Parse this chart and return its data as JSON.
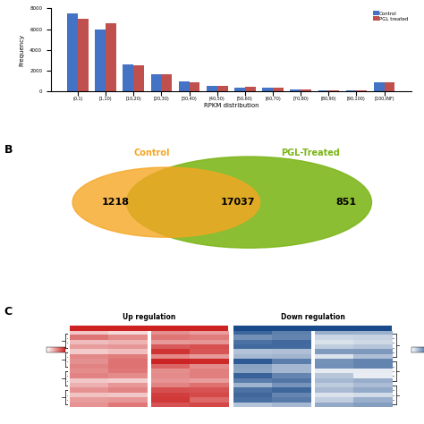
{
  "bar_categories": [
    "(0,1)",
    "[1,10)",
    "[10,20)",
    "[20,30)",
    "[30,40)",
    "[40,50)",
    "[50,60)",
    "[60,70)",
    "[70,80)",
    "[80,90)",
    "[90,100)",
    "[100,INF)"
  ],
  "control_values": [
    7500,
    6000,
    2600,
    1600,
    950,
    550,
    380,
    320,
    180,
    100,
    70,
    850
  ],
  "pgl_values": [
    7000,
    6600,
    2500,
    1600,
    850,
    500,
    400,
    340,
    190,
    110,
    60,
    900
  ],
  "bar_color_control": "#4472C4",
  "bar_color_pgl": "#C0504D",
  "ylabel": "Frequency",
  "xlabel": "RPKM distribution",
  "legend_control": "Control",
  "legend_pgl": "PGL treated",
  "ylim": [
    0,
    8000
  ],
  "yticks": [
    0,
    2000,
    4000,
    6000,
    8000
  ],
  "venn_left_label": "Control",
  "venn_right_label": "PGL-Treated",
  "venn_left_color": "#F5A623",
  "venn_right_color": "#7CB518",
  "venn_left_only": "1218",
  "venn_center": "17037",
  "venn_right_only": "851",
  "heatmap_up_title": "Up regulation",
  "heatmap_down_title": "Down regulation",
  "panel_b_label": "B",
  "panel_c_label": "C",
  "bg_color": "#FFFFFF"
}
